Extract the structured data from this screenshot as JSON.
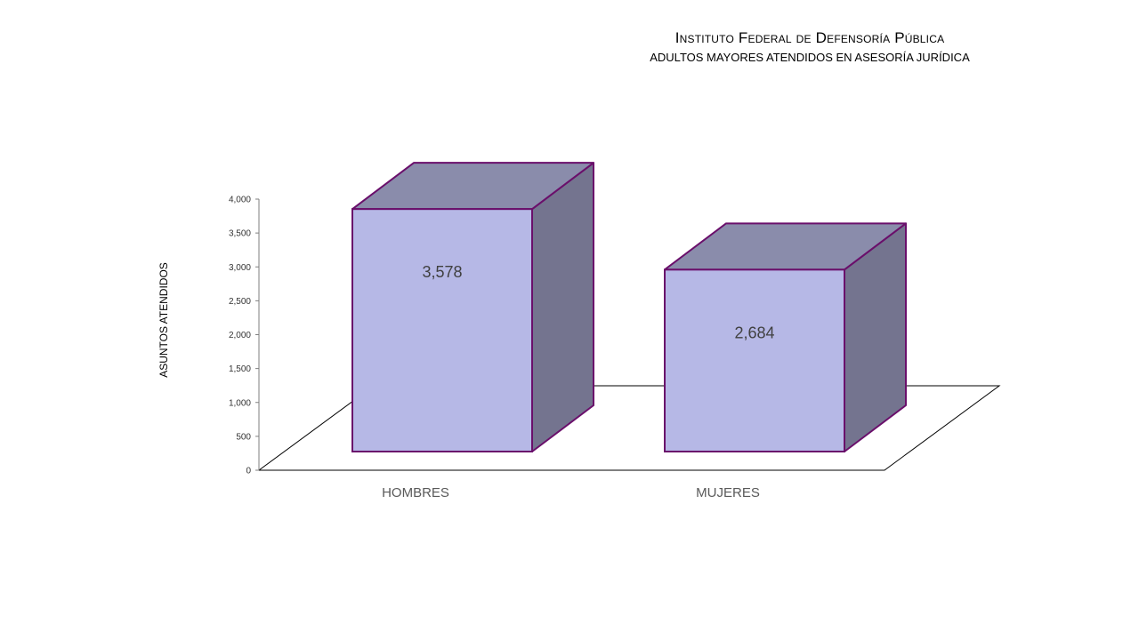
{
  "chart_data": {
    "type": "bar",
    "title": "Instituto Federal de Defensoría Pública",
    "subtitle": "ADULTOS MAYORES ATENDIDOS EN ASESORÍA JURÍDICA",
    "ylabel": "ASUNTOS ATENDIDOS",
    "xlabel": "",
    "categories": [
      "HOMBRES",
      "MUJERES"
    ],
    "values": [
      3578,
      2684
    ],
    "data_labels": [
      "3,578",
      "2,684"
    ],
    "yticks": [
      0,
      500,
      1000,
      1500,
      2000,
      2500,
      3000,
      3500,
      4000
    ],
    "ytick_labels": [
      "0",
      "500",
      "1,000",
      "1,500",
      "2,000",
      "2,500",
      "3,000",
      "3,500",
      "4,000"
    ],
    "ylim": [
      0,
      4000
    ],
    "grid": false,
    "style": "3d-column",
    "colors": {
      "bar_front": "#b6b8e6",
      "bar_top": "#8a8cab",
      "bar_side": "#74748f",
      "bar_outline": "#6a0f6b",
      "axis": "#000000"
    }
  }
}
